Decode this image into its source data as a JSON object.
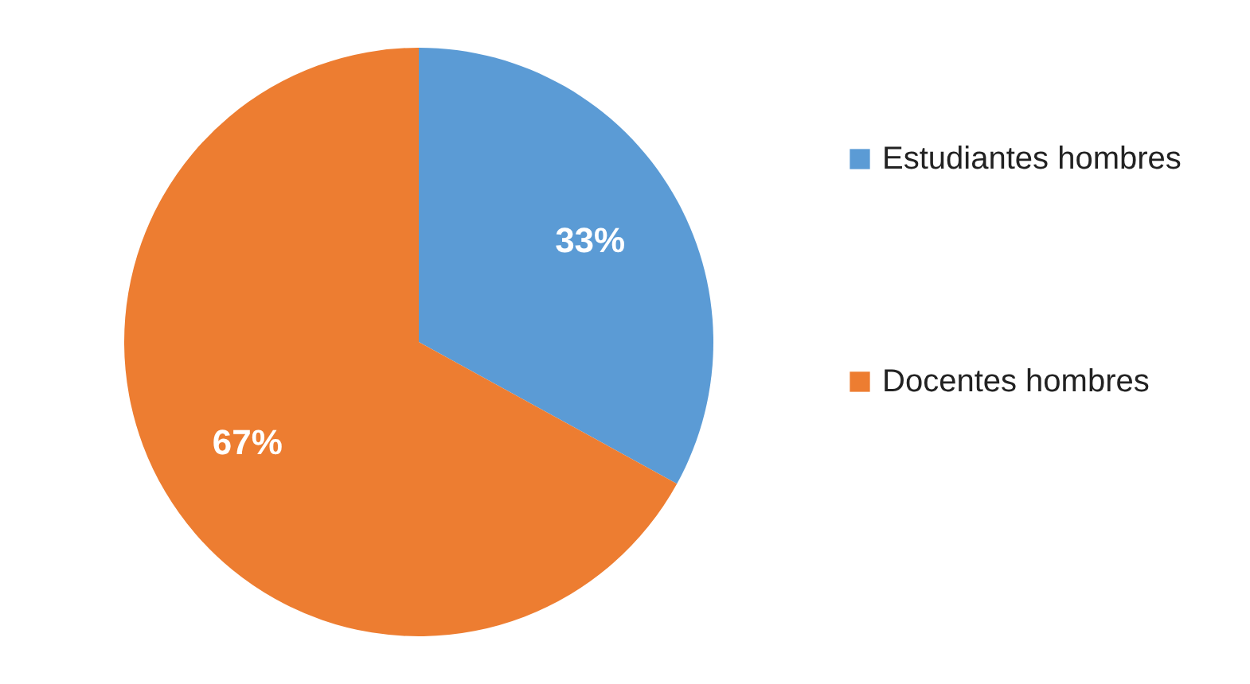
{
  "chart_data": {
    "type": "pie",
    "categories": [
      "Estudiantes hombres",
      "Docentes hombres"
    ],
    "values": [
      33,
      67
    ],
    "colors": [
      "#5b9bd5",
      "#ed7d31"
    ],
    "value_labels": [
      "33%",
      "67%"
    ],
    "legend": "right"
  }
}
